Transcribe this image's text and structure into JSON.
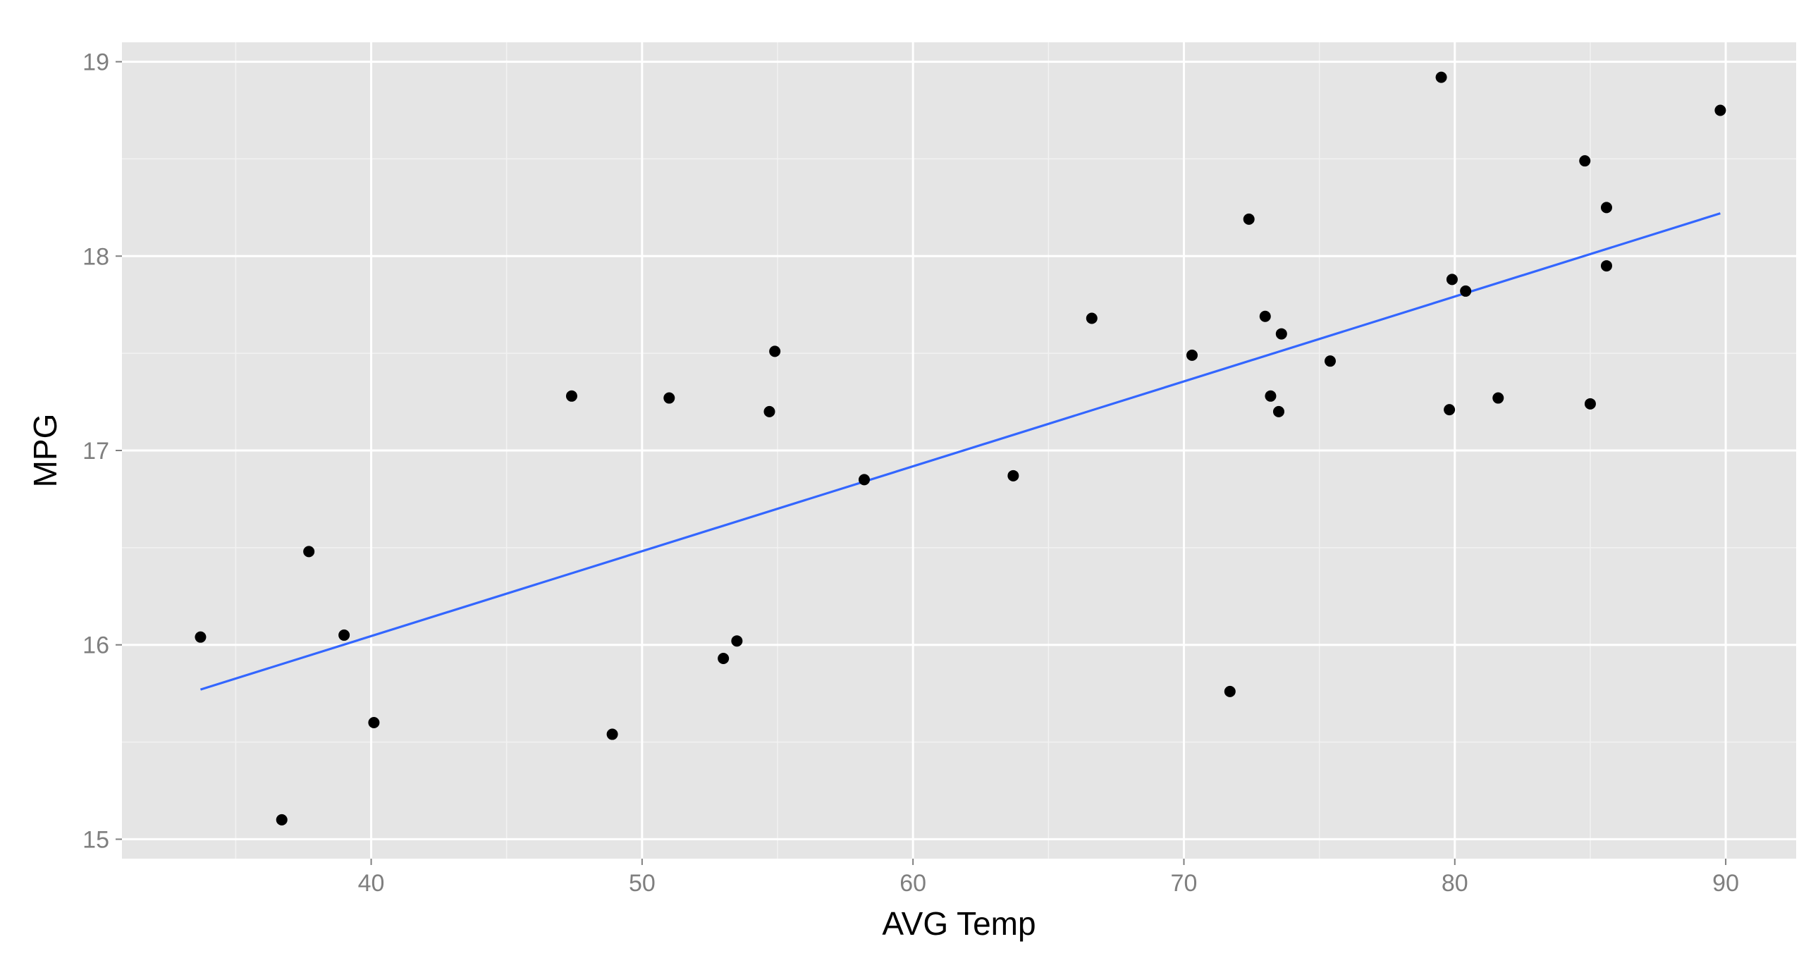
{
  "chart_data": {
    "type": "scatter",
    "title": "",
    "xlabel": "AVG Temp",
    "ylabel": "MPG",
    "xlim": [
      30.8,
      92.6
    ],
    "ylim": [
      14.9,
      19.1
    ],
    "x_ticks": [
      40,
      50,
      60,
      70,
      80,
      90
    ],
    "x_tick_labels": [
      "40",
      "50",
      "60",
      "70",
      "80",
      "90"
    ],
    "y_ticks": [
      15,
      16,
      17,
      18,
      19
    ],
    "y_tick_labels": [
      "15",
      "16",
      "17",
      "18",
      "19"
    ],
    "x_minor_ticks": [
      35,
      45,
      55,
      65,
      75,
      85
    ],
    "y_minor_ticks": [
      15.5,
      16.5,
      17.5,
      18.5
    ],
    "grid": true,
    "legend": "none",
    "colors": {
      "panel": "#e5e5e5",
      "grid_major": "#ffffff",
      "grid_minor": "#f2f2f2",
      "points": "#000000",
      "trend_line": "#3366ff",
      "tick_label": "#7f7f7f",
      "axis_title": "#000000"
    },
    "series": [
      {
        "points": [
          [
            33.7,
            16.04
          ],
          [
            36.7,
            15.1
          ],
          [
            37.7,
            16.48
          ],
          [
            39.0,
            16.05
          ],
          [
            40.1,
            15.6
          ],
          [
            47.4,
            17.28
          ],
          [
            48.9,
            15.54
          ],
          [
            51.0,
            17.27
          ],
          [
            53.0,
            15.93
          ],
          [
            53.5,
            16.02
          ],
          [
            54.7,
            17.2
          ],
          [
            54.9,
            17.51
          ],
          [
            58.2,
            16.85
          ],
          [
            63.7,
            16.87
          ],
          [
            66.6,
            17.68
          ],
          [
            70.3,
            17.49
          ],
          [
            71.7,
            15.76
          ],
          [
            72.4,
            18.19
          ],
          [
            73.0,
            17.69
          ],
          [
            73.2,
            17.28
          ],
          [
            73.5,
            17.2
          ],
          [
            73.6,
            17.6
          ],
          [
            75.4,
            17.46
          ],
          [
            79.5,
            18.92
          ],
          [
            79.8,
            17.21
          ],
          [
            79.9,
            17.88
          ],
          [
            80.4,
            17.82
          ],
          [
            81.6,
            17.27
          ],
          [
            84.8,
            18.49
          ],
          [
            85.0,
            17.24
          ],
          [
            85.6,
            17.95
          ],
          [
            85.6,
            18.25
          ],
          [
            89.8,
            18.75
          ]
        ]
      }
    ],
    "trend_line": {
      "x": [
        33.7,
        89.8
      ],
      "y": [
        15.77,
        18.22
      ]
    }
  }
}
